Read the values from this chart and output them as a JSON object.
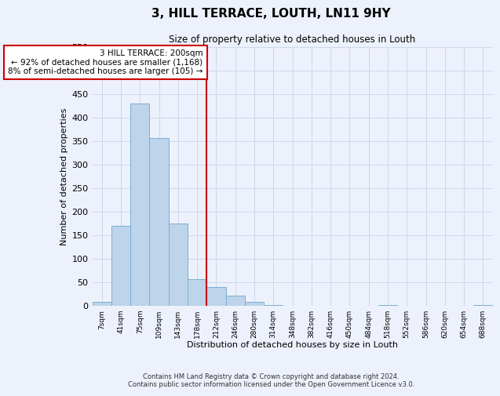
{
  "title": "3, HILL TERRACE, LOUTH, LN11 9HY",
  "subtitle": "Size of property relative to detached houses in Louth",
  "xlabel": "Distribution of detached houses by size in Louth",
  "ylabel": "Number of detached properties",
  "footer_line1": "Contains HM Land Registry data © Crown copyright and database right 2024.",
  "footer_line2": "Contains public sector information licensed under the Open Government Licence v3.0.",
  "bin_labels": [
    "7sqm",
    "41sqm",
    "75sqm",
    "109sqm",
    "143sqm",
    "178sqm",
    "212sqm",
    "246sqm",
    "280sqm",
    "314sqm",
    "348sqm",
    "382sqm",
    "416sqm",
    "450sqm",
    "484sqm",
    "518sqm",
    "552sqm",
    "586sqm",
    "620sqm",
    "654sqm",
    "688sqm"
  ],
  "bar_heights": [
    8,
    170,
    430,
    357,
    175,
    57,
    40,
    22,
    9,
    1,
    0,
    0,
    0,
    0,
    0,
    1,
    0,
    0,
    0,
    0,
    1
  ],
  "bar_color": "#bdd4ea",
  "bar_edge_color": "#7aafd4",
  "ylim": [
    0,
    550
  ],
  "yticks": [
    0,
    50,
    100,
    150,
    200,
    250,
    300,
    350,
    400,
    450,
    500,
    550
  ],
  "property_bin_index": 6,
  "annotation_line1": "3 HILL TERRACE: 200sqm",
  "annotation_line2": "← 92% of detached houses are smaller (1,168)",
  "annotation_line3": "8% of semi-detached houses are larger (105) →",
  "annotation_box_color": "#cc0000",
  "grid_color": "#ccd8ec",
  "background_color": "#edf1fb"
}
